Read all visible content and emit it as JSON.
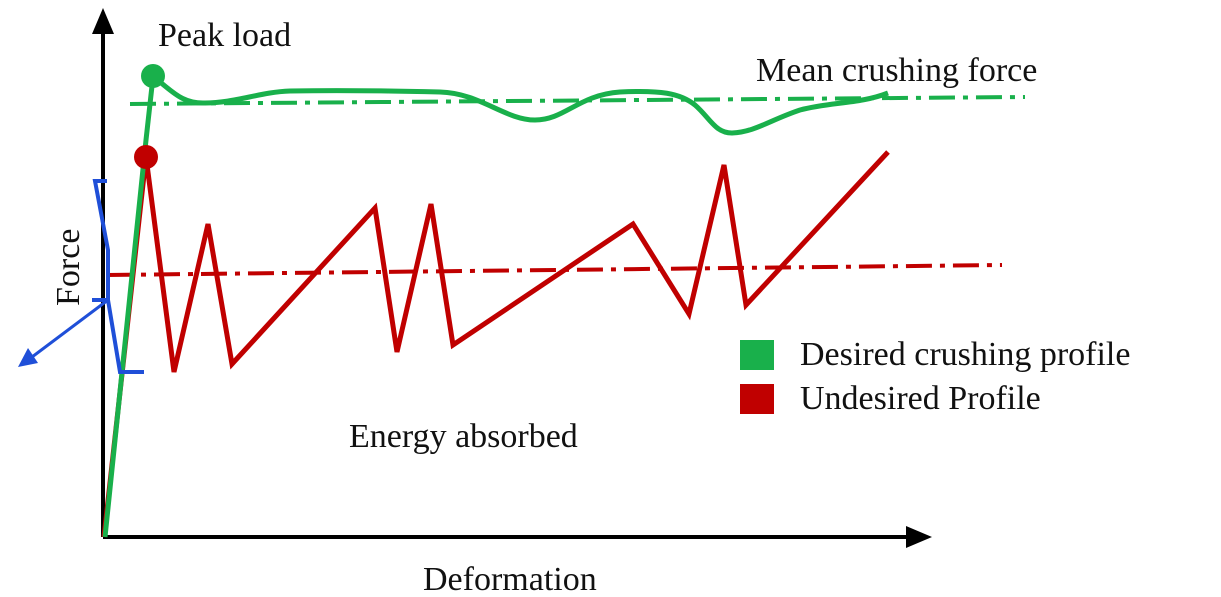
{
  "labels": {
    "peak_load": "Peak load",
    "mean_crushing_force": "Mean crushing force",
    "energy_absorbed": "Energy absorbed",
    "x_axis": "Deformation",
    "y_axis": "Force"
  },
  "legend": [
    {
      "label": "Desired crushing profile",
      "color": "#19b04b"
    },
    {
      "label": "Undesired Profile",
      "color": "#c00000"
    }
  ],
  "colors": {
    "desired": "#19b04b",
    "undesired": "#c00000",
    "bracket": "#1f4fd8",
    "axis": "#000000"
  }
}
